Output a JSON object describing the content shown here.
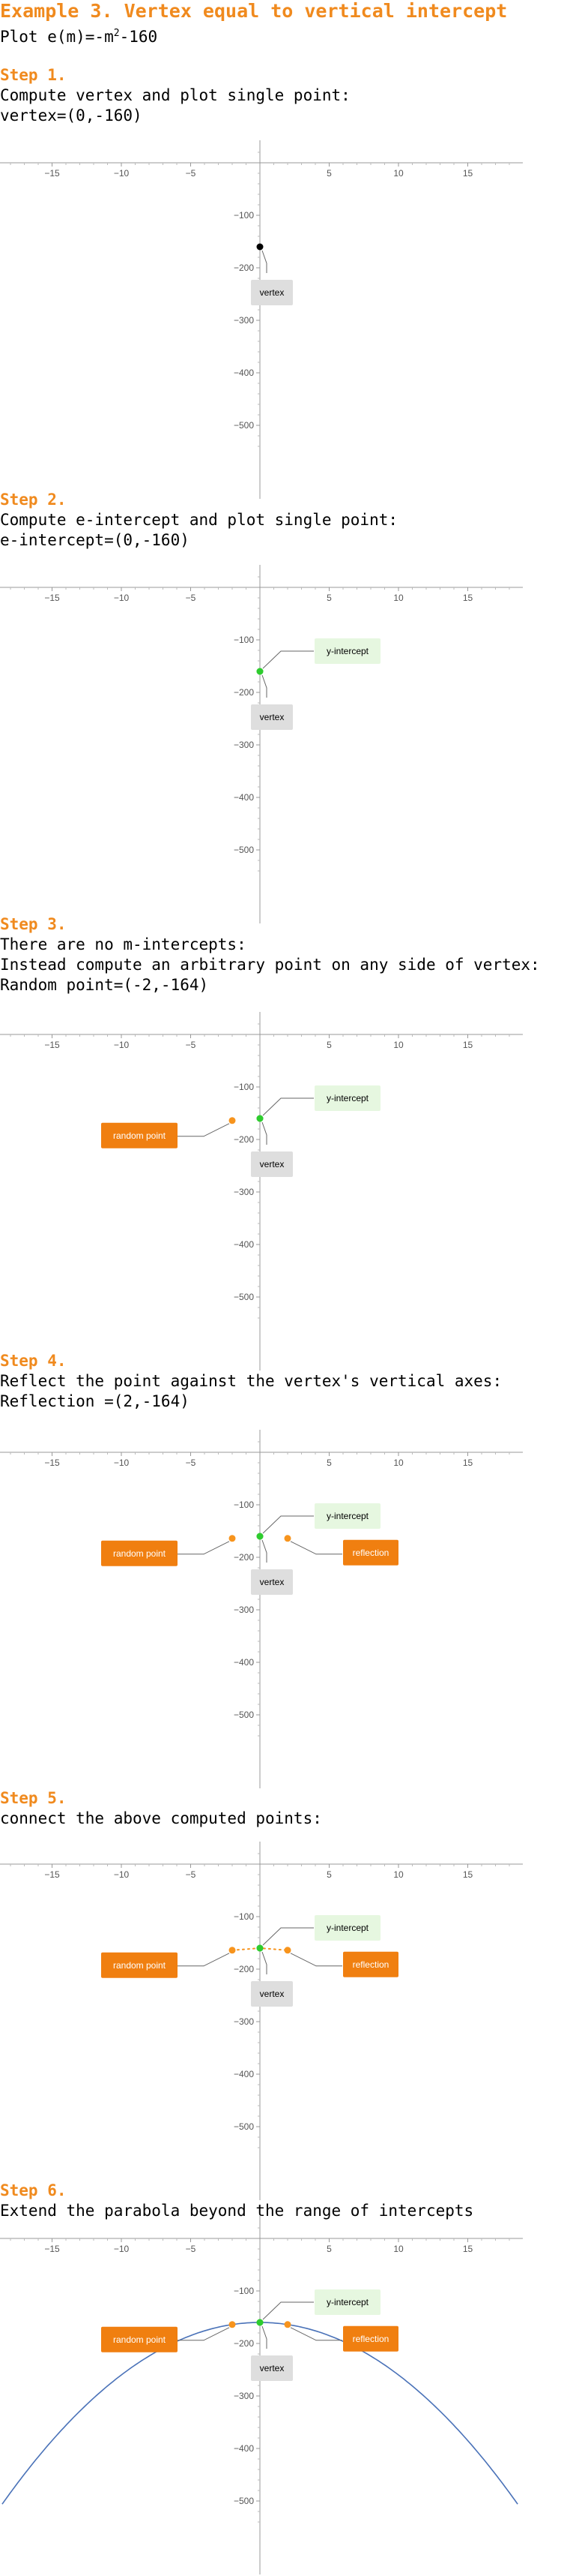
{
  "title": "Example 3. Vertex equal to vertical intercept",
  "plot": {
    "prefix": "Plot ",
    "func": "e(m)=-m",
    "exp": "2",
    "suffix": "-160"
  },
  "steps": [
    {
      "heading": "Step 1.",
      "lines": [
        "Compute vertex and plot single point:",
        "vertex=(0,-160)"
      ]
    },
    {
      "heading": "Step 2.",
      "lines": [
        "Compute e-intercept and plot single point:",
        "e-intercept=(0,-160)"
      ]
    },
    {
      "heading": "Step 3.",
      "lines": [
        "There are no m-intercepts:",
        "Instead compute an arbitrary point on any side of vertex:",
        "Random point=(-2,-164)"
      ]
    },
    {
      "heading": "Step 4.",
      "lines": [
        "Reflect the point against the vertex's vertical axes:",
        "Reflection =(2,-164)"
      ]
    },
    {
      "heading": "Step 5.",
      "lines": [
        "connect the above computed points:"
      ]
    },
    {
      "heading": "Step 6.",
      "lines": [
        "Extend the parabola beyond the range of intercepts"
      ]
    }
  ],
  "colors": {
    "orange": "#f08a1e",
    "orange_dot": "#f7941d",
    "green_dot": "#2ecc2e",
    "vertex_dot": "#000000",
    "curve": "#4a72b8",
    "vertex_box": "#dedede",
    "yint_box": "#e6f7e0",
    "random_box": "#f07f10"
  },
  "chart_data": [
    {
      "type": "scatter",
      "xlim": [
        -19,
        19
      ],
      "ylim": [
        -560,
        40
      ],
      "xticks": [
        -15,
        -10,
        -5,
        5,
        10,
        15
      ],
      "yticks": [
        -100,
        -200,
        -300,
        -400,
        -500
      ],
      "points": [
        {
          "x": 0,
          "y": -160,
          "role": "vertex",
          "label": "vertex"
        }
      ]
    },
    {
      "type": "scatter",
      "xlim": [
        -19,
        19
      ],
      "ylim": [
        -560,
        40
      ],
      "xticks": [
        -15,
        -10,
        -5,
        5,
        10,
        15
      ],
      "yticks": [
        -100,
        -200,
        -300,
        -400,
        -500
      ],
      "points": [
        {
          "x": 0,
          "y": -160,
          "role": "yint",
          "label": "y-intercept"
        },
        {
          "x": 0,
          "y": -160,
          "role": "vertex",
          "label": "vertex"
        }
      ]
    },
    {
      "type": "scatter",
      "xlim": [
        -19,
        19
      ],
      "ylim": [
        -560,
        40
      ],
      "xticks": [
        -15,
        -10,
        -5,
        5,
        10,
        15
      ],
      "yticks": [
        -100,
        -200,
        -300,
        -400,
        -500
      ],
      "points": [
        {
          "x": 0,
          "y": -160,
          "role": "yint",
          "label": "y-intercept"
        },
        {
          "x": 0,
          "y": -160,
          "role": "vertex",
          "label": "vertex"
        },
        {
          "x": -2,
          "y": -164,
          "role": "random",
          "label": "random point"
        }
      ]
    },
    {
      "type": "scatter",
      "xlim": [
        -19,
        19
      ],
      "ylim": [
        -560,
        40
      ],
      "xticks": [
        -15,
        -10,
        -5,
        5,
        10,
        15
      ],
      "yticks": [
        -100,
        -200,
        -300,
        -400,
        -500
      ],
      "points": [
        {
          "x": 0,
          "y": -160,
          "role": "yint",
          "label": "y-intercept"
        },
        {
          "x": 0,
          "y": -160,
          "role": "vertex",
          "label": "vertex"
        },
        {
          "x": -2,
          "y": -164,
          "role": "random",
          "label": "random point"
        },
        {
          "x": 2,
          "y": -164,
          "role": "reflection",
          "label": "reflection"
        }
      ]
    },
    {
      "type": "line",
      "xlim": [
        -19,
        19
      ],
      "ylim": [
        -560,
        40
      ],
      "xticks": [
        -15,
        -10,
        -5,
        5,
        10,
        15
      ],
      "yticks": [
        -100,
        -200,
        -300,
        -400,
        -500
      ],
      "connect_dotted": true,
      "points": [
        {
          "x": 0,
          "y": -160,
          "role": "yint",
          "label": "y-intercept"
        },
        {
          "x": 0,
          "y": -160,
          "role": "vertex",
          "label": "vertex"
        },
        {
          "x": -2,
          "y": -164,
          "role": "random",
          "label": "random point"
        },
        {
          "x": 2,
          "y": -164,
          "role": "reflection",
          "label": "reflection"
        }
      ]
    },
    {
      "type": "line",
      "xlim": [
        -19,
        19
      ],
      "ylim": [
        -560,
        40
      ],
      "xticks": [
        -15,
        -10,
        -5,
        5,
        10,
        15
      ],
      "yticks": [
        -100,
        -200,
        -300,
        -400,
        -500
      ],
      "curve": {
        "a": -1,
        "c": -160,
        "xrange": [
          -18.6,
          18.6
        ]
      },
      "points": [
        {
          "x": 0,
          "y": -160,
          "role": "yint",
          "label": "y-intercept"
        },
        {
          "x": 0,
          "y": -160,
          "role": "vertex",
          "label": "vertex"
        },
        {
          "x": -2,
          "y": -164,
          "role": "random",
          "label": "random point"
        },
        {
          "x": 2,
          "y": -164,
          "role": "reflection",
          "label": "reflection"
        }
      ]
    }
  ]
}
